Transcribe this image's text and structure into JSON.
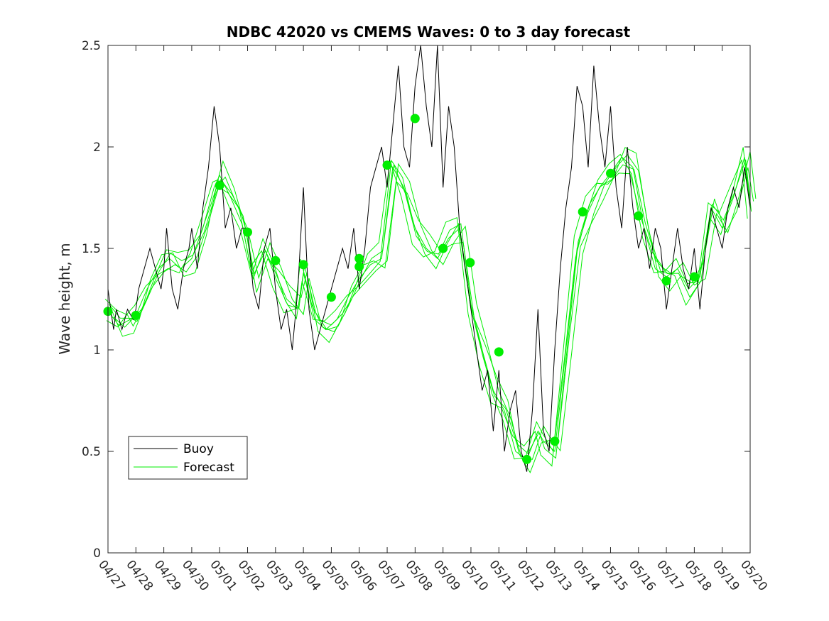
{
  "chart_data": {
    "type": "line",
    "title": "NDBC 42020 vs CMEMS Waves: 0 to 3 day forecast",
    "xlabel": "",
    "ylabel": "Wave height, m",
    "ylim": [
      0,
      2.5
    ],
    "yticks": [
      "0",
      "0.5",
      "1",
      "1.5",
      "2",
      "2.5"
    ],
    "xticks": [
      "04/27",
      "04/28",
      "04/29",
      "04/30",
      "05/01",
      "05/02",
      "05/03",
      "05/04",
      "05/05",
      "05/06",
      "05/07",
      "05/08",
      "05/09",
      "05/10",
      "05/11",
      "05/12",
      "05/13",
      "05/14",
      "05/15",
      "05/16",
      "05/17",
      "05/18",
      "05/19",
      "05/20"
    ],
    "grid": false,
    "legend_position": "lower-left",
    "colors": {
      "buoy": "#000000",
      "forecast": "#00ee00",
      "axes": "#262626"
    },
    "series": [
      {
        "name": "Buoy",
        "x_day": [
          0,
          0.1,
          0.2,
          0.3,
          0.5,
          0.7,
          0.9,
          1.0,
          1.1,
          1.3,
          1.5,
          1.7,
          1.9,
          2.0,
          2.1,
          2.3,
          2.5,
          2.7,
          2.9,
          3.0,
          3.2,
          3.4,
          3.6,
          3.8,
          4.0,
          4.2,
          4.4,
          4.6,
          4.8,
          5.0,
          5.2,
          5.4,
          5.6,
          5.8,
          6.0,
          6.2,
          6.4,
          6.6,
          6.8,
          7.0,
          7.2,
          7.4,
          7.6,
          7.8,
          8.0,
          8.2,
          8.4,
          8.6,
          8.8,
          9.0,
          9.2,
          9.4,
          9.6,
          9.8,
          10.0,
          10.2,
          10.4,
          10.6,
          10.8,
          11.0,
          11.2,
          11.4,
          11.6,
          11.8,
          12.0,
          12.2,
          12.4,
          12.6,
          12.8,
          13.0,
          13.2,
          13.4,
          13.6,
          13.8,
          14.0,
          14.2,
          14.4,
          14.6,
          14.8,
          15.0,
          15.2,
          15.4,
          15.6,
          15.8,
          16.0,
          16.2,
          16.4,
          16.6,
          16.8,
          17.0,
          17.2,
          17.4,
          17.6,
          17.8,
          18.0,
          18.2,
          18.4,
          18.6,
          18.8,
          19.0,
          19.2,
          19.4,
          19.6,
          19.8,
          20.0,
          20.2,
          20.4,
          20.6,
          20.8,
          21.0,
          21.2,
          21.4,
          21.6,
          21.8,
          22.0,
          22.2,
          22.4,
          22.6,
          22.8,
          23.0
        ],
        "values": [
          1.3,
          1.2,
          1.1,
          1.2,
          1.1,
          1.2,
          1.15,
          1.2,
          1.3,
          1.4,
          1.5,
          1.4,
          1.3,
          1.4,
          1.6,
          1.3,
          1.2,
          1.4,
          1.5,
          1.6,
          1.4,
          1.7,
          1.9,
          2.2,
          2.0,
          1.6,
          1.7,
          1.5,
          1.6,
          1.6,
          1.3,
          1.2,
          1.5,
          1.6,
          1.3,
          1.1,
          1.2,
          1.0,
          1.3,
          1.8,
          1.2,
          1.0,
          1.1,
          1.2,
          1.3,
          1.4,
          1.5,
          1.4,
          1.6,
          1.3,
          1.5,
          1.8,
          1.9,
          2.0,
          1.8,
          2.1,
          2.4,
          2.0,
          1.9,
          2.3,
          2.5,
          2.2,
          2.0,
          2.5,
          1.8,
          2.2,
          2.0,
          1.6,
          1.4,
          1.2,
          1.0,
          0.8,
          0.9,
          0.6,
          0.9,
          0.5,
          0.7,
          0.8,
          0.5,
          0.4,
          0.7,
          1.2,
          0.6,
          0.5,
          1.0,
          1.4,
          1.7,
          1.9,
          2.3,
          2.2,
          1.9,
          2.4,
          2.1,
          1.9,
          2.2,
          1.8,
          1.6,
          2.0,
          1.7,
          1.5,
          1.6,
          1.4,
          1.6,
          1.5,
          1.2,
          1.4,
          1.6,
          1.4,
          1.3,
          1.5,
          1.2,
          1.5,
          1.7,
          1.6,
          1.5,
          1.7,
          1.8,
          1.7,
          1.9,
          1.7
        ]
      },
      {
        "name": "Forecast",
        "x_day": [
          0,
          0.4,
          0.8,
          1.0,
          1.4,
          1.8,
          2.2,
          2.6,
          3.0,
          3.4,
          3.8,
          4.0,
          4.4,
          4.8,
          5.2,
          5.6,
          6.0,
          6.4,
          6.8,
          7.0,
          7.4,
          7.8,
          8.2,
          8.6,
          9.0,
          9.4,
          9.8,
          10.2,
          10.6,
          11.0,
          11.4,
          11.8,
          12.2,
          12.6,
          13.0,
          13.4,
          13.8,
          14.2,
          14.6,
          15.0,
          15.4,
          15.6,
          16.0,
          16.4,
          16.8,
          17.2,
          17.6,
          18.0,
          18.4,
          18.8,
          19.2,
          19.6,
          20.0,
          20.4,
          20.8,
          21.2,
          21.6,
          22.0,
          22.4,
          22.8,
          23.0
        ],
        "values": [
          1.19,
          1.12,
          1.15,
          1.17,
          1.3,
          1.4,
          1.45,
          1.4,
          1.45,
          1.6,
          1.8,
          1.86,
          1.75,
          1.62,
          1.35,
          1.5,
          1.38,
          1.25,
          1.2,
          1.38,
          1.15,
          1.1,
          1.15,
          1.26,
          1.35,
          1.42,
          1.45,
          1.9,
          1.8,
          1.6,
          1.5,
          1.45,
          1.55,
          1.6,
          1.2,
          1.0,
          0.8,
          0.7,
          0.5,
          0.46,
          0.6,
          0.55,
          0.5,
          1.0,
          1.5,
          1.68,
          1.8,
          1.87,
          1.95,
          1.9,
          1.6,
          1.4,
          1.36,
          1.4,
          1.3,
          1.36,
          1.7,
          1.6,
          1.75,
          1.95,
          1.72
        ]
      },
      {
        "name": "Daily forecast points",
        "x_day": [
          0,
          1,
          4,
          5,
          6,
          7,
          8,
          9,
          9.0,
          10,
          11,
          12,
          12.97,
          14,
          15,
          16,
          17,
          18,
          19,
          20,
          21
        ],
        "values": [
          1.19,
          1.17,
          1.81,
          1.58,
          1.44,
          1.42,
          1.26,
          1.45,
          1.41,
          1.91,
          2.14,
          1.5,
          1.43,
          0.99,
          0.46,
          0.55,
          1.68,
          1.87,
          1.66,
          1.34,
          1.36
        ]
      }
    ]
  }
}
